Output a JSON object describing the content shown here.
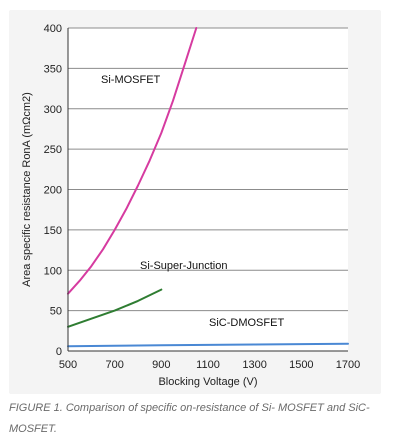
{
  "chart_data": {
    "type": "line",
    "title": "",
    "xlabel": "Blocking Voltage (V)",
    "ylabel": "Area specific resistance RonA (mΩcm2)",
    "xlim": [
      500,
      1700
    ],
    "ylim": [
      0,
      400
    ],
    "x_ticks": [
      "500",
      "700",
      "900",
      "1100",
      "1300",
      "1500",
      "1700"
    ],
    "y_ticks": [
      "0",
      "50",
      "100",
      "150",
      "200",
      "250",
      "300",
      "350",
      "400"
    ],
    "grid": "horizontal",
    "series": [
      {
        "name": "Si-MOSFET",
        "color": "#d63ba0",
        "x": [
          500,
          550,
          600,
          650,
          700,
          750,
          800,
          850,
          900,
          950,
          1000,
          1050
        ],
        "y": [
          71,
          87,
          105,
          126,
          150,
          176,
          205,
          236,
          270,
          310,
          355,
          400
        ]
      },
      {
        "name": "Si-Super-Junction",
        "color": "#2f7d32",
        "x": [
          500,
          600,
          700,
          800,
          900
        ],
        "y": [
          30,
          40,
          50,
          62,
          76
        ]
      },
      {
        "name": "SiC-DMOSFET",
        "color": "#4a88d4",
        "x": [
          500,
          700,
          900,
          1100,
          1300,
          1500,
          1700
        ],
        "y": [
          6,
          6.5,
          7,
          7.5,
          8,
          8.5,
          9
        ]
      }
    ]
  },
  "caption": "FIGURE 1. Comparison of specific on-resistance of Si- MOSFET and SiC-MOSFET."
}
